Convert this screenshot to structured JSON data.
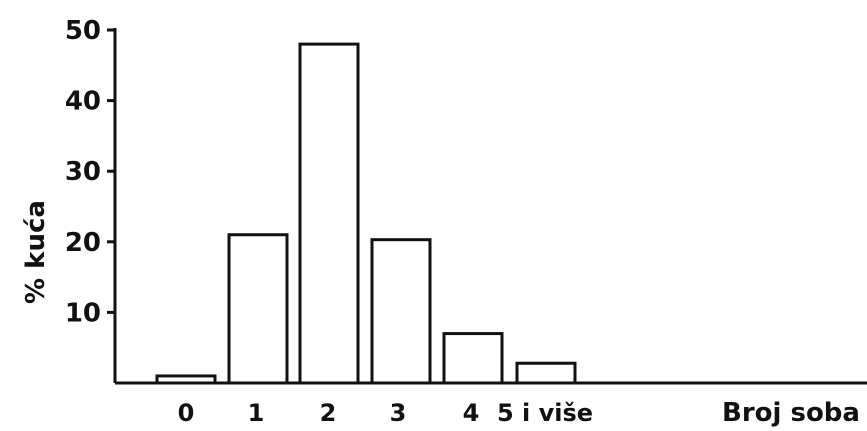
{
  "chart_data": {
    "type": "bar",
    "categories": [
      "0",
      "1",
      "2",
      "3",
      "4",
      "5 i više"
    ],
    "values": [
      1,
      21,
      48,
      20.3,
      7,
      2.8
    ],
    "yticks": [
      10,
      20,
      30,
      40,
      50
    ],
    "ylim": [
      0,
      50
    ],
    "ylabel": "% kuća",
    "xlabel": "Broj soba",
    "title": "",
    "grid": false,
    "colors": {
      "bar_fill": "#ffffff",
      "bar_stroke": "#111111"
    }
  }
}
